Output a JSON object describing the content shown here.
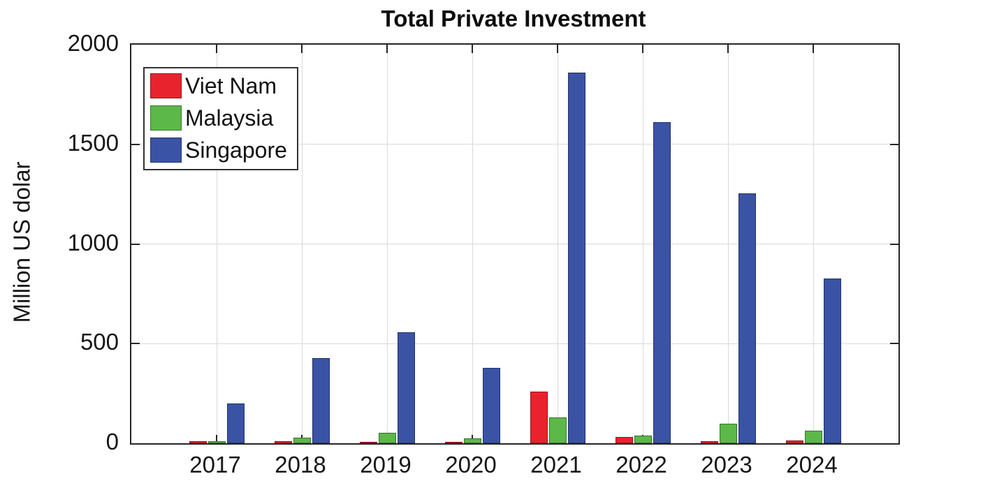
{
  "chart_data": {
    "type": "bar",
    "title": "Total Private Investment",
    "xlabel": "",
    "ylabel": "Million US dolar",
    "categories": [
      "2017",
      "2018",
      "2019",
      "2020",
      "2021",
      "2022",
      "2023",
      "2024"
    ],
    "series": [
      {
        "name": "Viet Nam",
        "color": "#e8232d",
        "values": [
          10,
          9,
          8,
          8,
          258,
          32,
          11,
          13
        ]
      },
      {
        "name": "Malaysia",
        "color": "#5cb848",
        "values": [
          10,
          28,
          53,
          25,
          131,
          40,
          99,
          62
        ]
      },
      {
        "name": "Singapore",
        "color": "#3a53a4",
        "values": [
          200,
          426,
          556,
          377,
          1860,
          1610,
          1255,
          825
        ]
      }
    ],
    "ylim": [
      0,
      2000
    ],
    "yticks": [
      0,
      500,
      1000,
      1500,
      2000
    ],
    "grid": true,
    "legend_position": "upper-left",
    "axis_color": "#262626",
    "grid_color": "#d9d9d9"
  }
}
